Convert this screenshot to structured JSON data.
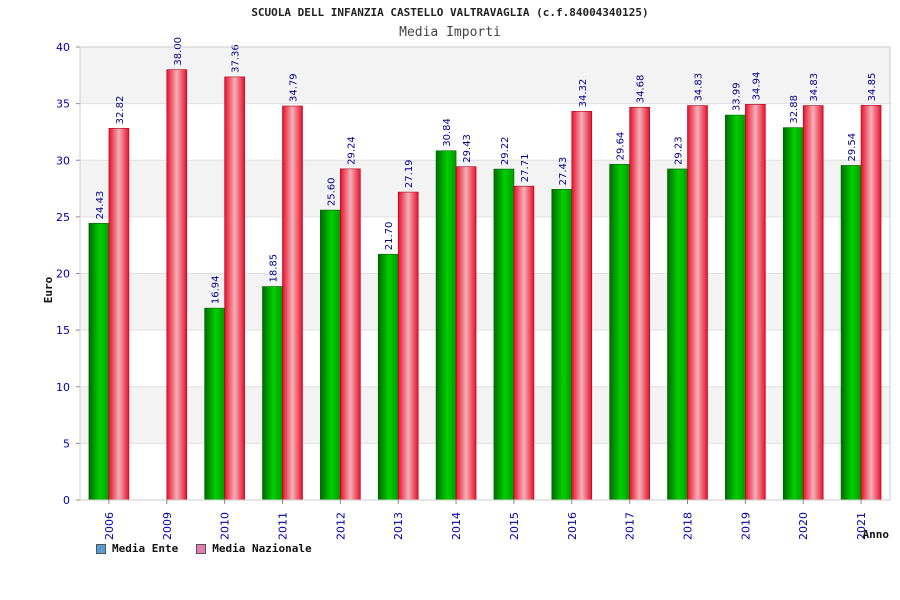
{
  "chart_data": {
    "type": "bar",
    "title": "SCUOLA DELL INFANZIA CASTELLO VALTRAVAGLIA (c.f.84004340125)",
    "subtitle": "Media Importi",
    "xlabel": "Anno",
    "ylabel": "Euro",
    "ylim": [
      0,
      40
    ],
    "yticks": [
      0,
      5,
      10,
      15,
      20,
      25,
      30,
      35,
      40
    ],
    "grid": true,
    "legend_position": "bottom-left",
    "categories": [
      "2006",
      "2009",
      "2010",
      "2011",
      "2012",
      "2013",
      "2014",
      "2015",
      "2016",
      "2017",
      "2018",
      "2019",
      "2020",
      "2021"
    ],
    "series": [
      {
        "name": "Media Ente",
        "color": "#00a000",
        "legend_color": "#5b9bd5",
        "values": [
          24.43,
          null,
          16.94,
          18.85,
          25.6,
          21.7,
          30.84,
          29.22,
          27.43,
          29.64,
          29.23,
          33.99,
          32.88,
          29.54
        ],
        "labels": [
          "24.43",
          "",
          "16.94",
          "18.85",
          "25.60",
          "21.70",
          "30.84",
          "29.22",
          "27.43",
          "29.64",
          "29.23",
          "33.99",
          "32.88",
          "29.54"
        ]
      },
      {
        "name": "Media Nazionale",
        "color": "#e8102a",
        "legend_color": "#e87ab0",
        "values": [
          32.82,
          38.0,
          37.36,
          34.79,
          29.24,
          27.19,
          29.43,
          27.71,
          34.32,
          34.68,
          34.83,
          34.94,
          34.83,
          34.85
        ],
        "labels": [
          "32.82",
          "38.00",
          "37.36",
          "34.79",
          "29.24",
          "27.19",
          "29.43",
          "27.71",
          "34.32",
          "34.68",
          "34.83",
          "34.94",
          "34.83",
          "34.85"
        ]
      }
    ]
  }
}
